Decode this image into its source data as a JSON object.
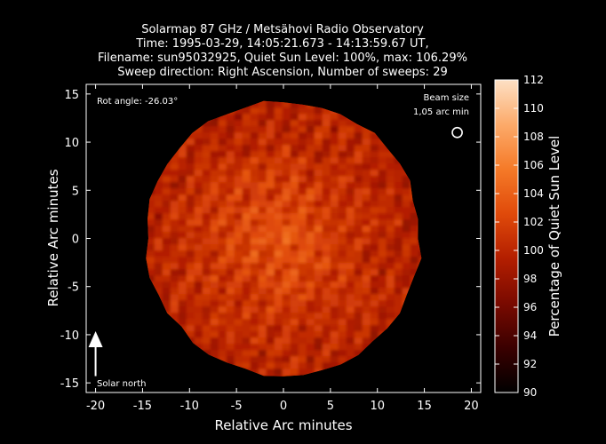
{
  "chart_data": {
    "type": "heatmap",
    "title_lines": [
      "Solarmap 87 GHz / Metsähovi Radio Observatory",
      "Time: 1995-03-29, 14:05:21.673 - 14:13:59.67 UT,",
      "Filename: sun95032925, Quiet Sun Level: 100%, max: 106.29%",
      "Sweep direction: Right Ascension, Number of sweeps: 29"
    ],
    "xlabel": "Relative Arc minutes",
    "ylabel": "Relative Arc minutes",
    "xlim": [
      -21,
      21
    ],
    "ylim": [
      -16,
      16
    ],
    "xticks": [
      -20,
      -15,
      -10,
      -5,
      0,
      5,
      10,
      15,
      20
    ],
    "yticks": [
      -15,
      -10,
      -5,
      0,
      5,
      10,
      15
    ],
    "colorbar": {
      "label": "Percentage of Quiet Sun Level",
      "range": [
        90,
        112
      ],
      "ticks": [
        90,
        92,
        94,
        96,
        98,
        100,
        102,
        104,
        106,
        108,
        110,
        112
      ],
      "colormap": [
        "#000000",
        "#3a0000",
        "#7a0a00",
        "#b31e00",
        "#e04a0a",
        "#f57a28",
        "#fcaa6a",
        "#fde0c4"
      ]
    },
    "disk": {
      "center": [
        0,
        0
      ],
      "radius_arcmin": 14.6,
      "level_range": [
        97,
        106.29
      ],
      "background_level": 90
    },
    "annotations": {
      "rot_angle": "Rot angle: -26.03°",
      "beam_label_1": "Beam size",
      "beam_label_2": "1,05 arc min",
      "beam_center": [
        18.5,
        11
      ],
      "beam_diameter_arcmin": 1.05,
      "solar_north_label": "Solar north",
      "north_arrow_x": -20,
      "north_arrow_from_y": -14.3,
      "north_arrow_to_y": -10
    }
  }
}
